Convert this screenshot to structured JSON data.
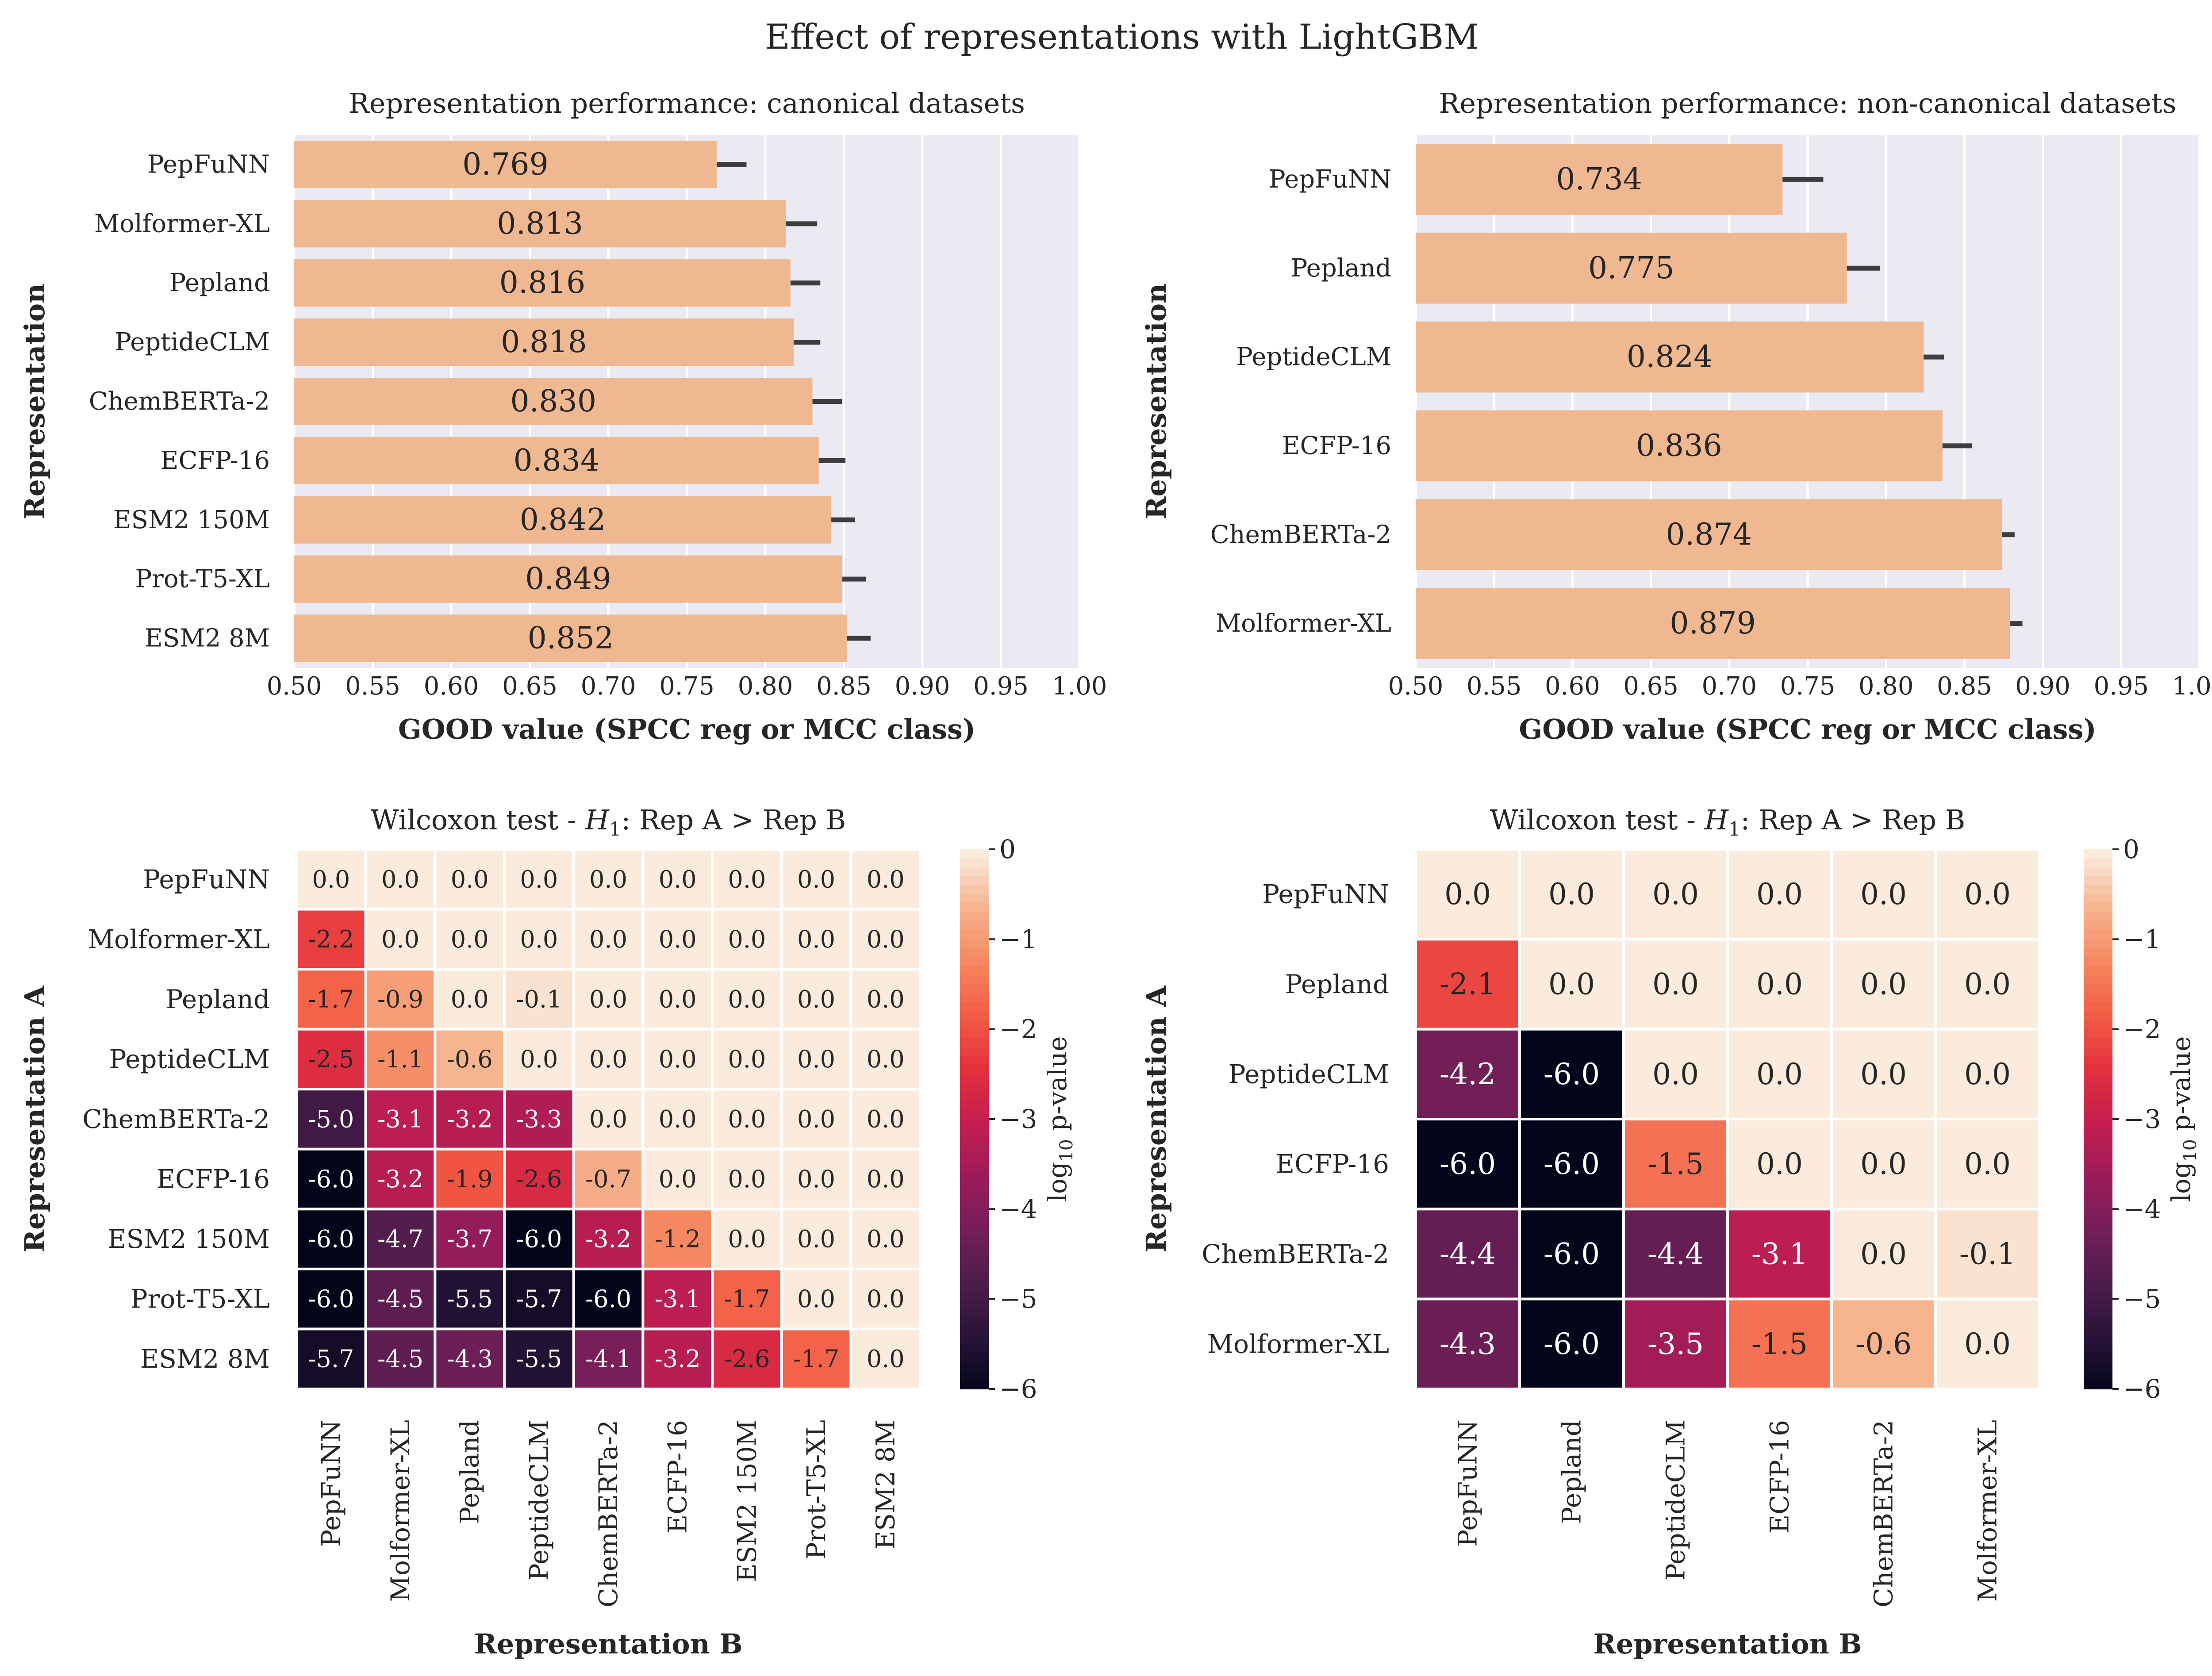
{
  "suptitle": "Effect of representations with LightGBM",
  "chart_data": [
    {
      "type": "bar",
      "orientation": "horizontal",
      "title": "Representation performance: canonical datasets",
      "xlabel": "GOOD value (SPCC reg or MCC class)",
      "ylabel": "Representation",
      "xlim": [
        0.5,
        1.0
      ],
      "xticks": [
        "0.50",
        "0.55",
        "0.60",
        "0.65",
        "0.70",
        "0.75",
        "0.80",
        "0.85",
        "0.90",
        "0.95",
        "1.00"
      ],
      "categories": [
        "PepFuNN",
        "Molformer-XL",
        "Pepland",
        "PeptideCLM",
        "ChemBERTa-2",
        "ECFP-16",
        "ESM2 150M",
        "Prot-T5-XL",
        "ESM2 8M"
      ],
      "values": [
        0.769,
        0.813,
        0.816,
        0.818,
        0.83,
        0.834,
        0.842,
        0.849,
        0.852
      ],
      "labels": [
        "0.769",
        "0.813",
        "0.816",
        "0.818",
        "0.830",
        "0.834",
        "0.842",
        "0.849",
        "0.852"
      ],
      "error_upper": [
        0.788,
        0.833,
        0.835,
        0.835,
        0.849,
        0.851,
        0.857,
        0.864,
        0.867
      ],
      "grid": true,
      "bar_color": "#f0b891",
      "background_color": "#eaeaf2"
    },
    {
      "type": "bar",
      "orientation": "horizontal",
      "title": "Representation performance: non-canonical datasets",
      "xlabel": "GOOD value (SPCC reg or MCC class)",
      "ylabel": "Representation",
      "xlim": [
        0.5,
        1.0
      ],
      "xticks": [
        "0.50",
        "0.55",
        "0.60",
        "0.65",
        "0.70",
        "0.75",
        "0.80",
        "0.85",
        "0.90",
        "0.95",
        "1.00"
      ],
      "categories": [
        "PepFuNN",
        "Pepland",
        "PeptideCLM",
        "ECFP-16",
        "ChemBERTa-2",
        "Molformer-XL"
      ],
      "values": [
        0.734,
        0.775,
        0.824,
        0.836,
        0.874,
        0.879
      ],
      "labels": [
        "0.734",
        "0.775",
        "0.824",
        "0.836",
        "0.874",
        "0.879"
      ],
      "error_upper": [
        0.76,
        0.796,
        0.837,
        0.855,
        0.882,
        0.887
      ],
      "grid": true,
      "bar_color": "#f0b891",
      "background_color": "#eaeaf2"
    },
    {
      "type": "heatmap",
      "title_prefix": "Wilcoxon test - ",
      "title_math": "H",
      "title_sub": "1",
      "title_suffix": ": Rep A > Rep B",
      "xlabel": "Representation B",
      "ylabel": "Representation A",
      "rows": [
        "PepFuNN",
        "Molformer-XL",
        "Pepland",
        "PeptideCLM",
        "ChemBERTa-2",
        "ECFP-16",
        "ESM2 150M",
        "Prot-T5-XL",
        "ESM2 8M"
      ],
      "cols": [
        "PepFuNN",
        "Molformer-XL",
        "Pepland",
        "PeptideCLM",
        "ChemBERTa-2",
        "ECFP-16",
        "ESM2 150M",
        "Prot-T5-XL",
        "ESM2 8M"
      ],
      "values": [
        [
          0.0,
          0.0,
          0.0,
          0.0,
          0.0,
          0.0,
          0.0,
          0.0,
          0.0
        ],
        [
          -2.2,
          0.0,
          0.0,
          0.0,
          0.0,
          0.0,
          0.0,
          0.0,
          0.0
        ],
        [
          -1.7,
          -0.9,
          0.0,
          -0.1,
          0.0,
          0.0,
          0.0,
          0.0,
          0.0
        ],
        [
          -2.5,
          -1.1,
          -0.6,
          0.0,
          0.0,
          0.0,
          0.0,
          0.0,
          0.0
        ],
        [
          -5.0,
          -3.1,
          -3.2,
          -3.3,
          0.0,
          0.0,
          0.0,
          0.0,
          0.0
        ],
        [
          -6.0,
          -3.2,
          -1.9,
          -2.6,
          -0.7,
          0.0,
          0.0,
          0.0,
          0.0
        ],
        [
          -6.0,
          -4.7,
          -3.7,
          -6.0,
          -3.2,
          -1.2,
          0.0,
          0.0,
          0.0
        ],
        [
          -6.0,
          -4.5,
          -5.5,
          -5.7,
          -6.0,
          -3.1,
          -1.7,
          0.0,
          0.0
        ],
        [
          -5.7,
          -4.5,
          -4.3,
          -5.5,
          -4.1,
          -3.2,
          -2.6,
          -1.7,
          0.0
        ]
      ],
      "colorbar": {
        "label_prefix": "log",
        "label_sub": "10",
        "label_suffix": " p-value",
        "range": [
          -6,
          0
        ],
        "ticks": [
          "0",
          "−1",
          "−2",
          "−3",
          "−4",
          "−5",
          "−6"
        ]
      },
      "colormap": "rocket"
    },
    {
      "type": "heatmap",
      "title_prefix": "Wilcoxon test - ",
      "title_math": "H",
      "title_sub": "1",
      "title_suffix": ": Rep A > Rep B",
      "xlabel": "Representation B",
      "ylabel": "Representation A",
      "rows": [
        "PepFuNN",
        "Pepland",
        "PeptideCLM",
        "ECFP-16",
        "ChemBERTa-2",
        "Molformer-XL"
      ],
      "cols": [
        "PepFuNN",
        "Pepland",
        "PeptideCLM",
        "ECFP-16",
        "ChemBERTa-2",
        "Molformer-XL"
      ],
      "values": [
        [
          0.0,
          0.0,
          0.0,
          0.0,
          0.0,
          0.0
        ],
        [
          -2.1,
          0.0,
          0.0,
          0.0,
          0.0,
          0.0
        ],
        [
          -4.2,
          -6.0,
          0.0,
          0.0,
          0.0,
          0.0
        ],
        [
          -6.0,
          -6.0,
          -1.5,
          0.0,
          0.0,
          0.0
        ],
        [
          -4.4,
          -6.0,
          -4.4,
          -3.1,
          0.0,
          -0.1
        ],
        [
          -4.3,
          -6.0,
          -3.5,
          -1.5,
          -0.6,
          0.0
        ]
      ],
      "colorbar": {
        "label_prefix": "log",
        "label_sub": "10",
        "label_suffix": " p-value",
        "range": [
          -6,
          0
        ],
        "ticks": [
          "0",
          "−1",
          "−2",
          "−3",
          "−4",
          "−5",
          "−6"
        ]
      },
      "colormap": "rocket"
    }
  ]
}
